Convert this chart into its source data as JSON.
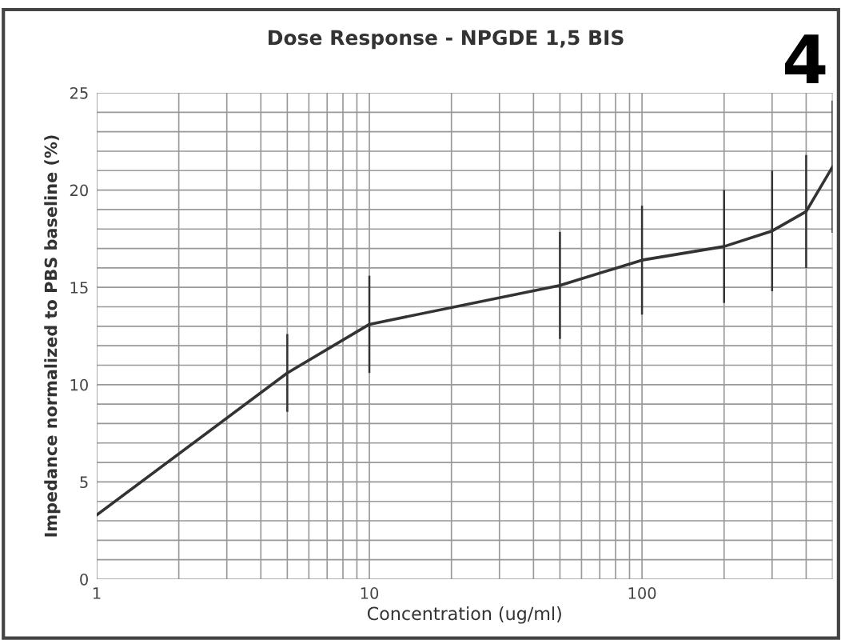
{
  "chart_data": {
    "type": "line",
    "title": "Dose Response - NPGDE 1,5 BIS",
    "xlabel": "Concentration (ug/ml)",
    "ylabel": "Impedance normalized to PBS baseline (%)",
    "annotations": [
      "4"
    ],
    "x": [
      1,
      5,
      10,
      50,
      100,
      200,
      300,
      400,
      500
    ],
    "series": [
      {
        "color": "#333333",
        "values": [
          3.3,
          10.6,
          13.1,
          15.1,
          16.4,
          17.1,
          17.9,
          18.9,
          21.2
        ],
        "errors": [
          null,
          2,
          2.5,
          2.75,
          2.8,
          2.9,
          3.1,
          2.9,
          3.4
        ]
      }
    ],
    "log": "x",
    "xlim": [
      1,
      500
    ],
    "xticks": [
      1,
      10,
      100
    ],
    "ylim": [
      0,
      25
    ],
    "yticks": [
      0,
      5,
      10,
      15,
      20,
      25
    ],
    "grid": true,
    "legend": false,
    "marker": "none",
    "line_style": "solid"
  }
}
